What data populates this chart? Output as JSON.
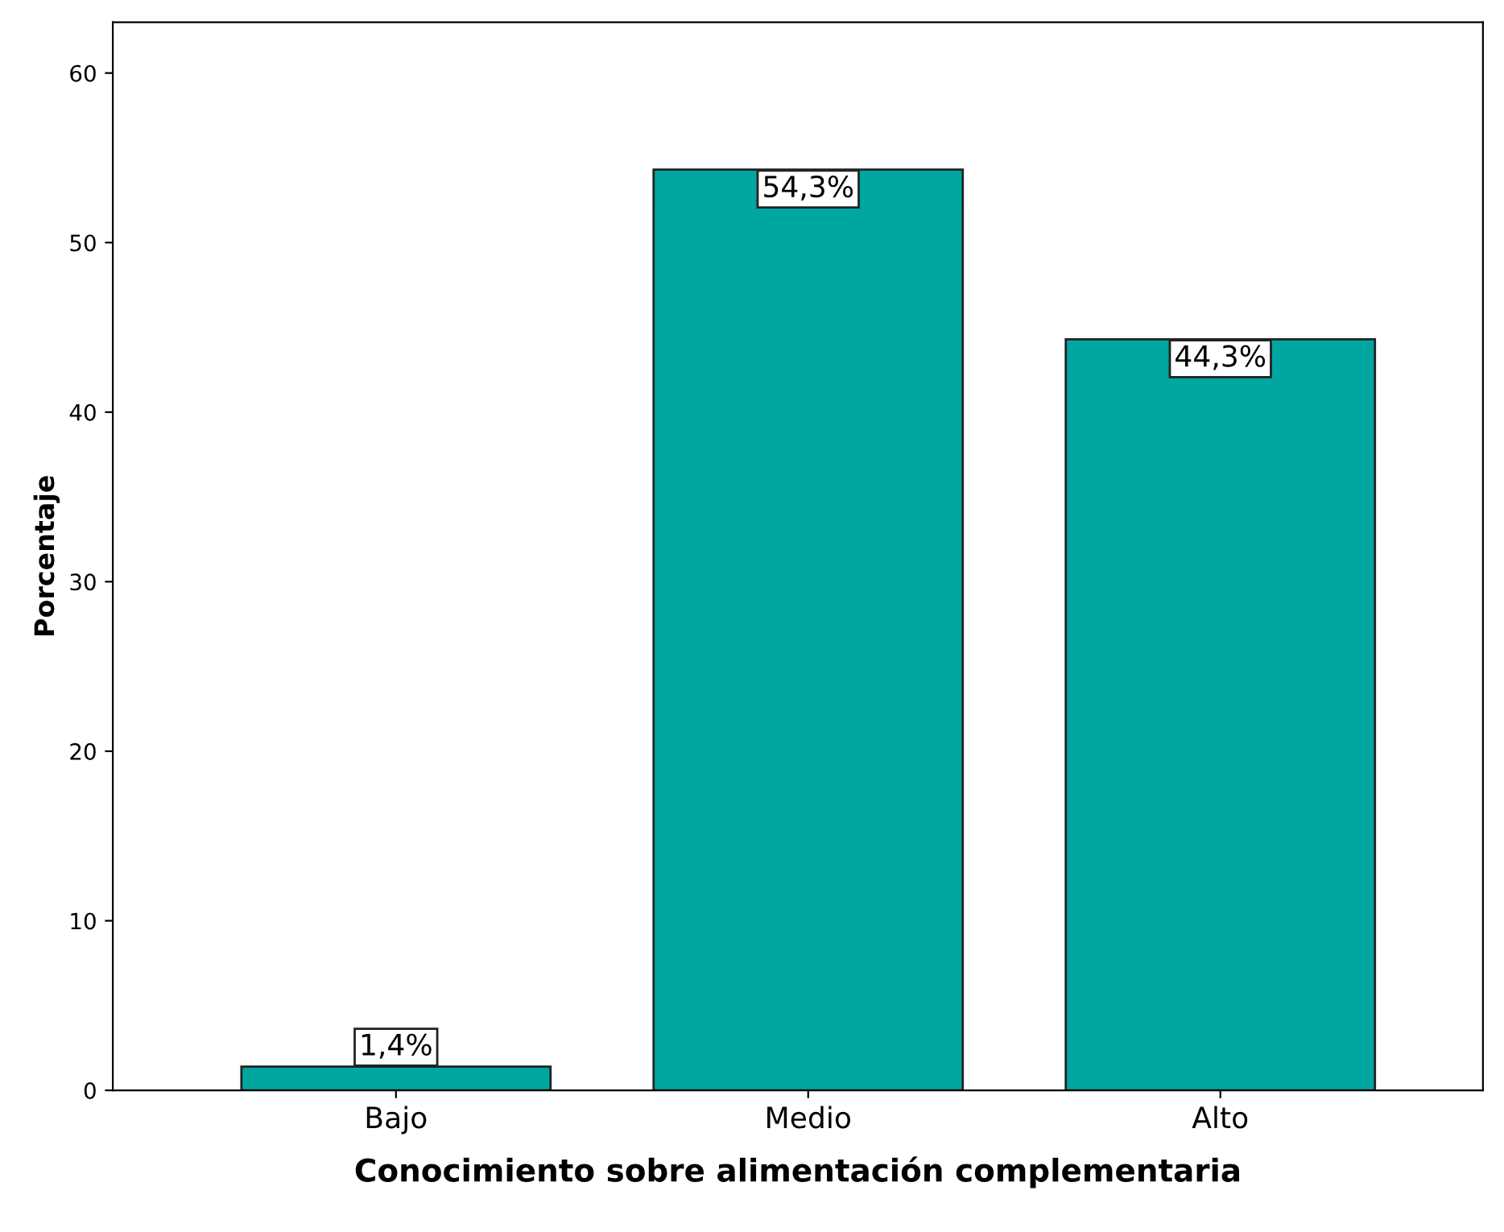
{
  "chart_data": {
    "type": "bar",
    "xlabel": "Conocimiento sobre alimentación complementaria",
    "ylabel": "Porcentaje",
    "categories": [
      "Bajo",
      "Medio",
      "Alto"
    ],
    "values": [
      1.4,
      54.3,
      44.3
    ],
    "value_labels": [
      "1,4%",
      "54,3%",
      "44,3%"
    ],
    "color": "#00a6a0",
    "ylim": [
      0,
      63
    ],
    "yticks": [
      0,
      10,
      20,
      30,
      40,
      50,
      60
    ],
    "grid": false
  }
}
